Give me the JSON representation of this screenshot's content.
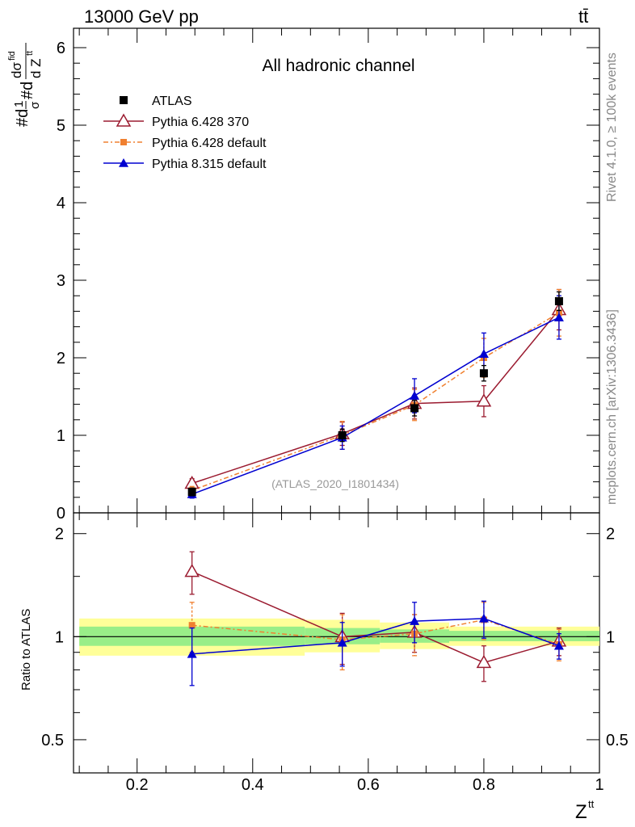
{
  "header": {
    "energy": "13000 GeV pp",
    "process": "tt̄"
  },
  "side_text": {
    "rivet": "Rivet 4.1.0, ≥ 100k events",
    "source": "mcplots.cern.ch [arXiv:1306.3436]"
  },
  "main_plot": {
    "ylabel_top": "#d",
    "ylabel_note": "#d 1/σ #d dσfid / d Ztt",
    "analysis_id": "(ATLAS_2020_I1801434)"
  },
  "ratio_plot": {
    "ylabel": "Ratio to ATLAS"
  },
  "chart_data": [
    {
      "type": "line",
      "title": "All hadronic channel",
      "xlabel": "Z",
      "xlabel_sup": "tt",
      "ylabel": "1/σ dσfid / d Ztt",
      "xlim": [
        0.09,
        1.0
      ],
      "ylim": [
        0,
        6.25
      ],
      "xticks": [
        0.2,
        0.4,
        0.6,
        0.8,
        1
      ],
      "xtick_labels": [
        "0.2",
        "0.4",
        "0.6",
        "0.8",
        "1"
      ],
      "yticks": [
        0,
        1,
        2,
        3,
        4,
        5,
        6
      ],
      "ytick_labels": [
        "0",
        "1",
        "2",
        "3",
        "4",
        "5",
        "6"
      ],
      "series": [
        {
          "name": "ATLAS",
          "color": "#000000",
          "marker": "square",
          "line": "none",
          "x": [
            0.295,
            0.555,
            0.68,
            0.8,
            0.93
          ],
          "y": [
            0.27,
            1.0,
            1.35,
            1.8,
            2.73
          ],
          "err": [
            0.05,
            0.08,
            0.1,
            0.1,
            0.12
          ]
        },
        {
          "name": "Pythia 6.428 370",
          "color": "#9b1b30",
          "marker": "triangle-open",
          "line": "solid",
          "x": [
            0.295,
            0.555,
            0.68,
            0.8,
            0.93
          ],
          "y": [
            0.38,
            1.02,
            1.41,
            1.44,
            2.62
          ],
          "err": [
            0.06,
            0.15,
            0.2,
            0.2,
            0.26
          ]
        },
        {
          "name": "Pythia 6.428 default",
          "color": "#f08030",
          "marker": "square-small",
          "line": "dashdot",
          "x": [
            0.295,
            0.555,
            0.68,
            0.8,
            0.93
          ],
          "y": [
            0.29,
            1.0,
            1.39,
            2.0,
            2.58
          ],
          "err": [
            0.05,
            0.18,
            0.2,
            0.25,
            0.3
          ]
        },
        {
          "name": "Pythia 8.315 default",
          "color": "#0000d0",
          "marker": "triangle",
          "line": "solid",
          "x": [
            0.295,
            0.555,
            0.68,
            0.8,
            0.93
          ],
          "y": [
            0.24,
            0.97,
            1.51,
            2.05,
            2.52
          ],
          "err": [
            0.05,
            0.15,
            0.22,
            0.27,
            0.28
          ]
        }
      ]
    },
    {
      "type": "line",
      "title": "",
      "ylabel": "Ratio to ATLAS",
      "xlim": [
        0.09,
        1.0
      ],
      "ylim": [
        0.4,
        2.3
      ],
      "yscale": "log",
      "yticks": [
        0.5,
        1,
        2
      ],
      "ytick_labels": [
        "0.5",
        "1",
        "2"
      ],
      "bands": {
        "x_edges": [
          0.1,
          0.49,
          0.62,
          0.74,
          1.0
        ],
        "yellow_lo": [
          0.88,
          0.9,
          0.92,
          0.94
        ],
        "yellow_hi": [
          1.13,
          1.12,
          1.1,
          1.07
        ],
        "green_lo": [
          0.94,
          0.95,
          0.96,
          0.97
        ],
        "green_hi": [
          1.07,
          1.06,
          1.05,
          1.04
        ]
      },
      "series": [
        {
          "name": "Pythia 6.428 370",
          "color": "#9b1b30",
          "marker": "triangle-open",
          "line": "solid",
          "x": [
            0.295,
            0.555,
            0.68,
            0.8,
            0.93
          ],
          "y": [
            1.55,
            1.0,
            1.03,
            0.84,
            0.97
          ],
          "err": [
            0.22,
            0.17,
            0.13,
            0.1,
            0.09
          ]
        },
        {
          "name": "Pythia 6.428 default",
          "color": "#f08030",
          "marker": "square-small",
          "line": "dashdot",
          "x": [
            0.295,
            0.555,
            0.68,
            0.8,
            0.93
          ],
          "y": [
            1.08,
            0.98,
            1.02,
            1.12,
            0.95
          ],
          "err": [
            0.18,
            0.18,
            0.14,
            0.14,
            0.1
          ]
        },
        {
          "name": "Pythia 8.315 default",
          "color": "#0000d0",
          "marker": "triangle",
          "line": "solid",
          "x": [
            0.295,
            0.555,
            0.68,
            0.8,
            0.93
          ],
          "y": [
            0.89,
            0.96,
            1.11,
            1.13,
            0.94
          ],
          "err": [
            0.17,
            0.14,
            0.15,
            0.14,
            0.08
          ]
        }
      ]
    }
  ]
}
